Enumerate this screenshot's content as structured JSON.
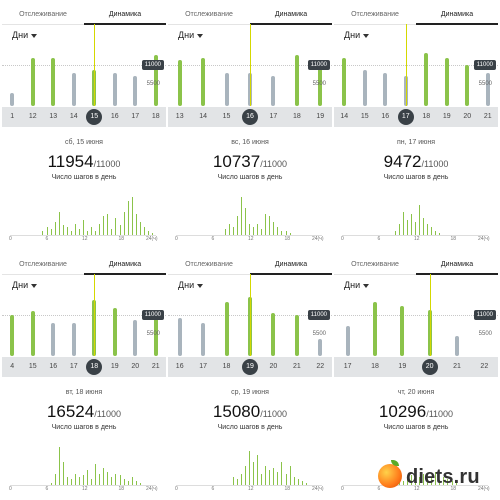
{
  "common": {
    "tab_tracking": "Отслеживание",
    "tab_dynamics": "Динамика",
    "range_label": "Дни",
    "goal_tag": "11000",
    "mid_tag": "5500",
    "caption": "Число шагов в день",
    "goal_suffix": "/11000",
    "hour_labels": [
      "0",
      "6",
      "12",
      "18",
      "24(ч)"
    ]
  },
  "panels": [
    {
      "date": "сб, 15 июня",
      "steps": "11954",
      "days": [
        "1",
        "12",
        "13",
        "14",
        "15",
        "16",
        "17",
        "18"
      ],
      "selected_index": 4,
      "bars": [
        {
          "v": 0.2,
          "c": "grey"
        },
        {
          "v": 0.72,
          "c": "green"
        },
        {
          "v": 0.72,
          "c": "green"
        },
        {
          "v": 0.5,
          "c": "grey"
        },
        {
          "v": 0.55,
          "c": "green"
        },
        {
          "v": 0.5,
          "c": "grey"
        },
        {
          "v": 0.45,
          "c": "grey"
        },
        {
          "v": 0.78,
          "c": "green"
        }
      ],
      "hourly": [
        0,
        0,
        0,
        0,
        0,
        0,
        0,
        0,
        0.1,
        0.2,
        0.15,
        0.35,
        0.6,
        0.25,
        0.2,
        0.1,
        0.3,
        0.15,
        0.4,
        0.1,
        0.2,
        0.1,
        0.3,
        0.5,
        0.55,
        0.15,
        0.45,
        0.25,
        0.6,
        0.9,
        1.0,
        0.55,
        0.35,
        0.2,
        0.1,
        0.05
      ]
    },
    {
      "date": "вс, 16 июня",
      "steps": "10737",
      "days": [
        "13",
        "14",
        "15",
        "16",
        "17",
        "18",
        "19"
      ],
      "selected_index": 3,
      "bars": [
        {
          "v": 0.7,
          "c": "green"
        },
        {
          "v": 0.72,
          "c": "green"
        },
        {
          "v": 0.5,
          "c": "grey"
        },
        {
          "v": 0.5,
          "c": "grey"
        },
        {
          "v": 0.45,
          "c": "grey"
        },
        {
          "v": 0.78,
          "c": "green"
        },
        {
          "v": 0.7,
          "c": "green"
        }
      ],
      "hourly": [
        0,
        0,
        0,
        0,
        0,
        0,
        0,
        0,
        0,
        0,
        0,
        0,
        0.15,
        0.3,
        0.2,
        0.5,
        1.0,
        0.7,
        0.3,
        0.2,
        0.3,
        0.15,
        0.55,
        0.5,
        0.35,
        0.2,
        0.1,
        0.1,
        0.05,
        0,
        0,
        0,
        0,
        0,
        0,
        0
      ]
    },
    {
      "date": "пн, 17 июня",
      "steps": "9472",
      "days": [
        "14",
        "15",
        "16",
        "17",
        "18",
        "19",
        "20",
        "21"
      ],
      "selected_index": 3,
      "bars": [
        {
          "v": 0.72,
          "c": "green"
        },
        {
          "v": 0.55,
          "c": "grey"
        },
        {
          "v": 0.5,
          "c": "grey"
        },
        {
          "v": 0.45,
          "c": "grey"
        },
        {
          "v": 0.8,
          "c": "green"
        },
        {
          "v": 0.72,
          "c": "green"
        },
        {
          "v": 0.62,
          "c": "green"
        },
        {
          "v": 0.5,
          "c": "grey"
        }
      ],
      "hourly": [
        0,
        0,
        0,
        0,
        0,
        0,
        0,
        0,
        0,
        0,
        0,
        0,
        0,
        0.1,
        0.3,
        0.6,
        0.4,
        0.55,
        0.35,
        0.8,
        0.45,
        0.3,
        0.2,
        0.1,
        0.05,
        0,
        0,
        0,
        0,
        0,
        0,
        0,
        0,
        0,
        0,
        0
      ]
    },
    {
      "date": "вт, 18 июня",
      "steps": "16524",
      "days": [
        "4",
        "15",
        "16",
        "17",
        "18",
        "19",
        "20",
        "21"
      ],
      "selected_index": 4,
      "bars": [
        {
          "v": 0.62,
          "c": "green"
        },
        {
          "v": 0.68,
          "c": "green"
        },
        {
          "v": 0.5,
          "c": "grey"
        },
        {
          "v": 0.5,
          "c": "grey"
        },
        {
          "v": 0.85,
          "c": "green"
        },
        {
          "v": 0.72,
          "c": "green"
        },
        {
          "v": 0.55,
          "c": "grey"
        },
        {
          "v": 0.7,
          "c": "green"
        }
      ],
      "hourly": [
        0,
        0,
        0,
        0,
        0,
        0,
        0,
        0,
        0,
        0,
        0.05,
        0.3,
        1.0,
        0.6,
        0.2,
        0.15,
        0.3,
        0.2,
        0.25,
        0.4,
        0.15,
        0.55,
        0.3,
        0.45,
        0.35,
        0.2,
        0.3,
        0.25,
        0.15,
        0.1,
        0.2,
        0.1,
        0.05,
        0,
        0,
        0
      ]
    },
    {
      "date": "ср, 19 июня",
      "steps": "15080",
      "days": [
        "16",
        "17",
        "18",
        "19",
        "20",
        "21",
        "22"
      ],
      "selected_index": 3,
      "bars": [
        {
          "v": 0.58,
          "c": "grey"
        },
        {
          "v": 0.5,
          "c": "grey"
        },
        {
          "v": 0.82,
          "c": "green"
        },
        {
          "v": 0.9,
          "c": "green"
        },
        {
          "v": 0.65,
          "c": "green"
        },
        {
          "v": 0.62,
          "c": "green"
        },
        {
          "v": 0.25,
          "c": "grey"
        }
      ],
      "hourly": [
        0,
        0,
        0,
        0,
        0,
        0,
        0,
        0,
        0,
        0,
        0,
        0,
        0,
        0,
        0.2,
        0.15,
        0.3,
        0.5,
        0.9,
        0.6,
        0.8,
        0.3,
        0.5,
        0.4,
        0.45,
        0.35,
        0.6,
        0.3,
        0.5,
        0.2,
        0.15,
        0.1,
        0.05,
        0,
        0,
        0
      ]
    },
    {
      "date": "чт, 20 июня",
      "steps": "10296",
      "days": [
        "17",
        "18",
        "19",
        "20",
        "21",
        "22"
      ],
      "selected_index": 3,
      "bars": [
        {
          "v": 0.45,
          "c": "grey"
        },
        {
          "v": 0.82,
          "c": "green"
        },
        {
          "v": 0.75,
          "c": "green"
        },
        {
          "v": 0.7,
          "c": "green"
        },
        {
          "v": 0.3,
          "c": "grey"
        },
        {
          "v": 0.0,
          "c": "grey"
        }
      ],
      "hourly": [
        0,
        0,
        0,
        0,
        0,
        0,
        0,
        0,
        0,
        0,
        0,
        0,
        0,
        0.2,
        0.3,
        0.1,
        0.15,
        0.25,
        0.4,
        0.2,
        0.3,
        0.15,
        0.2,
        0.35,
        0.1,
        0.2,
        0.15,
        0.1,
        0.05,
        0,
        0,
        0,
        0,
        0,
        0,
        0
      ]
    }
  ],
  "watermark": {
    "text": "diets.ru"
  }
}
